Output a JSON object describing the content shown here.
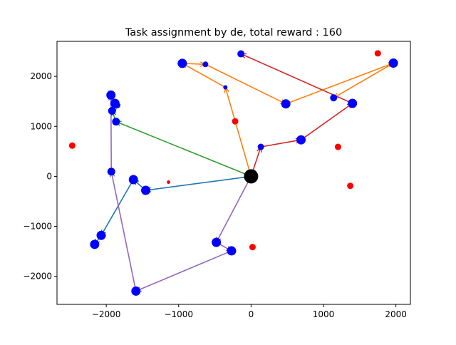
{
  "chart_data": {
    "type": "scatter",
    "title": "Task assignment by de, total reward : 160",
    "xlabel": "",
    "ylabel": "",
    "xlim": [
      -2680,
      2200
    ],
    "ylim": [
      -2560,
      2700
    ],
    "x_ticks": [
      -2000,
      -1000,
      0,
      1000,
      2000
    ],
    "y_ticks": [
      -2000,
      -1000,
      0,
      1000,
      2000
    ],
    "x_tick_labels": [
      "−2000",
      "−1000",
      "0",
      "1000",
      "2000"
    ],
    "y_tick_labels": [
      "−2000",
      "−1000",
      "0",
      "1000",
      "2000"
    ],
    "grid": false,
    "depot": {
      "x": 0,
      "y": 0,
      "color": "#000000",
      "size": 10
    },
    "visited_tasks": [
      {
        "x": -1935,
        "y": 1625,
        "size": 6.5
      },
      {
        "x": -1880,
        "y": 1460,
        "size": 6.5
      },
      {
        "x": -1845,
        "y": 1420,
        "size": 4
      },
      {
        "x": -1920,
        "y": 1310,
        "size": 5.5
      },
      {
        "x": -1865,
        "y": 1095,
        "size": 5.5
      },
      {
        "x": -1930,
        "y": 95,
        "size": 5.5
      },
      {
        "x": -1625,
        "y": -65,
        "size": 6.5
      },
      {
        "x": -1455,
        "y": -280,
        "size": 6.5
      },
      {
        "x": -2070,
        "y": -1180,
        "size": 6.5
      },
      {
        "x": -2160,
        "y": -1360,
        "size": 6.5
      },
      {
        "x": -1590,
        "y": -2295,
        "size": 6.5
      },
      {
        "x": -480,
        "y": -1320,
        "size": 6.5
      },
      {
        "x": -270,
        "y": -1490,
        "size": 6.5
      },
      {
        "x": -950,
        "y": 2260,
        "size": 6.5
      },
      {
        "x": -630,
        "y": 2240,
        "size": 4
      },
      {
        "x": -355,
        "y": 1780,
        "size": 3
      },
      {
        "x": 480,
        "y": 1450,
        "size": 6.5
      },
      {
        "x": 1965,
        "y": 2265,
        "size": 6.5
      },
      {
        "x": -140,
        "y": 2450,
        "size": 5
      },
      {
        "x": 1140,
        "y": 1570,
        "size": 5
      },
      {
        "x": 1400,
        "y": 1460,
        "size": 6.5
      },
      {
        "x": 690,
        "y": 730,
        "size": 6.5
      },
      {
        "x": 135,
        "y": 590,
        "size": 4.5
      }
    ],
    "visited_color": "#0000ff",
    "unvisited_tasks": [
      {
        "x": -2470,
        "y": 615,
        "size": 4.5
      },
      {
        "x": -1140,
        "y": -115,
        "size": 2.5
      },
      {
        "x": -220,
        "y": 1100,
        "size": 4.5
      },
      {
        "x": 20,
        "y": -1415,
        "size": 4.5
      },
      {
        "x": 1200,
        "y": 590,
        "size": 4.5
      },
      {
        "x": 1370,
        "y": -190,
        "size": 4.5
      },
      {
        "x": 1750,
        "y": 2460,
        "size": 4.5
      }
    ],
    "unvisited_color": "#ff0000",
    "routes": [
      {
        "color": "#1f77b4",
        "points": [
          [
            0,
            0
          ],
          [
            -1455,
            -280
          ],
          [
            -1625,
            -65
          ],
          [
            -2070,
            -1180
          ],
          [
            -2160,
            -1360
          ]
        ]
      },
      {
        "color": "#ff7f0e",
        "points": [
          [
            0,
            0
          ],
          [
            -355,
            1780
          ],
          [
            -950,
            2260
          ],
          [
            -630,
            2240
          ],
          [
            480,
            1450
          ],
          [
            1965,
            2265
          ],
          [
            1140,
            1570
          ]
        ]
      },
      {
        "color": "#2ca02c",
        "points": [
          [
            0,
            0
          ],
          [
            -1865,
            1095
          ],
          [
            -1920,
            1310
          ],
          [
            -1845,
            1420
          ],
          [
            -1880,
            1460
          ]
        ]
      },
      {
        "color": "#d62728",
        "points": [
          [
            0,
            0
          ],
          [
            135,
            590
          ],
          [
            690,
            730
          ],
          [
            1400,
            1460
          ],
          [
            -140,
            2450
          ]
        ]
      },
      {
        "color": "#9467bd",
        "points": [
          [
            0,
            0
          ],
          [
            -480,
            -1320
          ],
          [
            -270,
            -1490
          ],
          [
            -1590,
            -2295
          ],
          [
            -1930,
            95
          ],
          [
            -1935,
            1625
          ]
        ]
      }
    ]
  }
}
